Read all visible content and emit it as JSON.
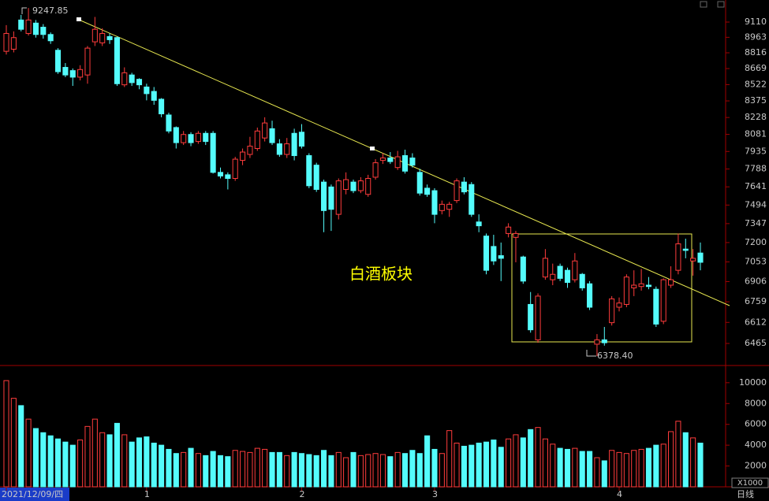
{
  "chart_data": {
    "type": "candlestick",
    "title": "白酒板块",
    "categories": [
      "2021/12/09/四",
      null,
      null,
      null,
      null,
      null,
      null,
      null,
      null,
      null,
      null,
      null,
      null,
      null,
      null,
      null,
      null,
      null,
      null,
      "1",
      null,
      null,
      null,
      null,
      null,
      null,
      null,
      null,
      null,
      null,
      null,
      null,
      null,
      null,
      null,
      null,
      null,
      null,
      null,
      null,
      "2",
      null,
      null,
      null,
      null,
      null,
      null,
      null,
      null,
      null,
      null,
      null,
      null,
      null,
      null,
      null,
      null,
      null,
      "3",
      null,
      null,
      null,
      null,
      null,
      null,
      null,
      null,
      null,
      null,
      null,
      null,
      null,
      null,
      null,
      null,
      null,
      null,
      null,
      null,
      null,
      null,
      null,
      null,
      "4",
      null,
      null,
      null,
      null,
      null,
      null,
      null,
      null,
      null,
      null,
      null
    ],
    "open": [
      8830,
      8850,
      9130,
      9000,
      9100,
      9060,
      8990,
      8840,
      8680,
      8650,
      8590,
      8610,
      8920,
      8910,
      8970,
      8960,
      8520,
      8610,
      8570,
      8500,
      8460,
      8390,
      8250,
      8140,
      8010,
      8080,
      8020,
      8090,
      8090,
      7760,
      7740,
      7710,
      7860,
      7910,
      7960,
      8050,
      8130,
      8000,
      7910,
      8090,
      8100,
      7900,
      7820,
      7680,
      7640,
      7420,
      7620,
      7680,
      7610,
      7580,
      7720,
      7860,
      7880,
      7800,
      7900,
      7880,
      7760,
      7630,
      7610,
      7450,
      7460,
      7530,
      7680,
      7660,
      7360,
      7250,
      7170,
      7100,
      7270,
      7240,
      7090,
      6740,
      6490,
      6940,
      6920,
      7020,
      6990,
      6920,
      6960,
      6890,
      6460,
      6490,
      6610,
      6720,
      6740,
      6860,
      6870,
      6880,
      6850,
      6620,
      6880,
      6990,
      7150,
      7060,
      7120
    ],
    "high": [
      9080,
      9020,
      9180,
      9247.85,
      9130,
      9090,
      9010,
      8860,
      8720,
      8670,
      8700,
      8880,
      9160,
      9050,
      9000,
      8970,
      8680,
      8630,
      8580,
      8530,
      8500,
      8400,
      8270,
      8150,
      8110,
      8100,
      8110,
      8110,
      8110,
      7800,
      7760,
      7890,
      7960,
      8060,
      8140,
      8230,
      8200,
      8040,
      8050,
      8130,
      8170,
      7920,
      7840,
      7700,
      7660,
      7710,
      7760,
      7700,
      7720,
      7740,
      7870,
      7920,
      7930,
      7940,
      7950,
      7920,
      7790,
      7660,
      7630,
      7530,
      7520,
      7710,
      7720,
      7680,
      7420,
      7270,
      7260,
      7200,
      7350,
      7290,
      7100,
      6830,
      6820,
      7150,
      7040,
      7040,
      7010,
      7120,
      6970,
      6910,
      6530,
      6580,
      6800,
      6790,
      6960,
      6990,
      7000,
      6940,
      6870,
      6930,
      7020,
      7270,
      7230,
      7150,
      7200
    ],
    "low": [
      8800,
      8820,
      9020,
      8980,
      8960,
      8950,
      8900,
      8620,
      8590,
      8510,
      8560,
      8530,
      8880,
      8880,
      8900,
      8510,
      8500,
      8510,
      8480,
      8380,
      8340,
      8230,
      8090,
      7960,
      7990,
      7980,
      8000,
      7990,
      7750,
      7710,
      7620,
      7690,
      7820,
      7880,
      7940,
      8020,
      7990,
      7890,
      7880,
      7860,
      7960,
      7630,
      7600,
      7280,
      7290,
      7380,
      7580,
      7590,
      7590,
      7560,
      7700,
      7830,
      7830,
      7780,
      7750,
      7800,
      7570,
      7560,
      7350,
      7420,
      7400,
      7510,
      7580,
      7400,
      7280,
      6960,
      7030,
      6910,
      7240,
      7050,
      6890,
      6540,
      6470,
      6920,
      6880,
      6910,
      6860,
      6900,
      6840,
      6700,
      6378.4,
      6450,
      6590,
      6690,
      6720,
      6800,
      6840,
      6850,
      6580,
      6600,
      6860,
      6960,
      7080,
      6950,
      6990
    ],
    "close": [
      9000,
      8960,
      9040,
      9130,
      8990,
      8990,
      8930,
      8640,
      8610,
      8590,
      8660,
      8860,
      9040,
      9000,
      8940,
      8530,
      8630,
      8540,
      8520,
      8440,
      8380,
      8260,
      8110,
      8010,
      8080,
      8010,
      8090,
      8020,
      7760,
      7730,
      7710,
      7870,
      7930,
      7980,
      8110,
      8180,
      8010,
      7910,
      8000,
      7900,
      7980,
      7650,
      7620,
      7450,
      7460,
      7690,
      7700,
      7610,
      7690,
      7710,
      7840,
      7880,
      7850,
      7890,
      7770,
      7820,
      7590,
      7580,
      7420,
      7500,
      7500,
      7690,
      7600,
      7420,
      7330,
      6990,
      7060,
      7080,
      7320,
      7270,
      6910,
      6560,
      6800,
      7080,
      6960,
      6930,
      6900,
      7060,
      6860,
      6720,
      6490,
      6470,
      6780,
      6750,
      6940,
      6880,
      6890,
      6870,
      6600,
      6920,
      6920,
      7190,
      7140,
      7080,
      7050
    ],
    "log_scale": true,
    "ylim": [
      6320,
      9327
    ],
    "yticks": [
      9110,
      8963,
      8816,
      8669,
      8522,
      8375,
      8228,
      8081,
      7935,
      7788,
      7641,
      7494,
      7347,
      7200,
      7053,
      6906,
      6759,
      6612,
      6465
    ],
    "up_color": "#ff3c3c",
    "down_color": "#54fcfc",
    "high_label": "9247.85",
    "low_label": "6378.40",
    "period": "日线",
    "volume": {
      "values": [
        10200,
        8500,
        7800,
        6500,
        5600,
        5200,
        4900,
        4600,
        4300,
        4000,
        4500,
        5800,
        6500,
        5200,
        5000,
        6100,
        5000,
        4300,
        4700,
        4800,
        4200,
        4000,
        3600,
        3200,
        3300,
        3700,
        3200,
        3000,
        3400,
        3000,
        2900,
        3500,
        3400,
        3300,
        3700,
        3600,
        3300,
        3300,
        3000,
        3300,
        3200,
        3100,
        3000,
        3500,
        3000,
        3300,
        2800,
        3300,
        3000,
        3100,
        3200,
        3100,
        2900,
        3300,
        3200,
        3500,
        3200,
        4900,
        3600,
        3200,
        5400,
        4200,
        3900,
        4000,
        4200,
        4300,
        4500,
        3800,
        4600,
        5000,
        4700,
        5500,
        5700,
        4600,
        4100,
        3700,
        3600,
        3700,
        3400,
        3400,
        2800,
        2500,
        3500,
        3300,
        3200,
        3500,
        3600,
        3700,
        4000,
        4100,
        5300,
        6300,
        5200,
        4700,
        4200
      ],
      "ylim": [
        0,
        11500
      ],
      "yticks": [
        2000,
        4000,
        6000,
        8000,
        10000
      ],
      "unit": "X1000"
    }
  }
}
